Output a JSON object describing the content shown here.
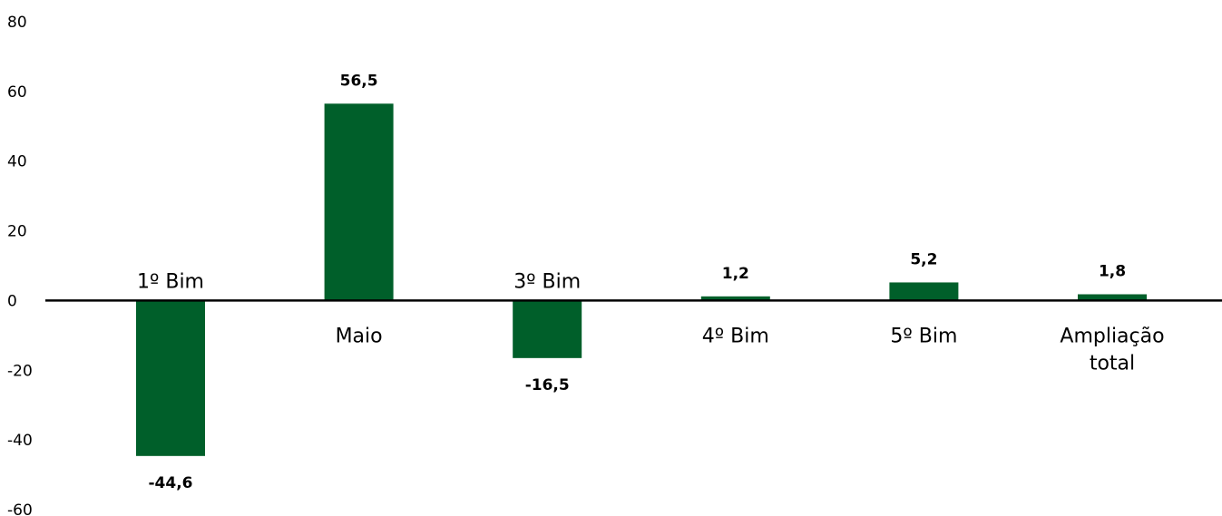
{
  "chart_data": {
    "type": "bar",
    "categories": [
      [
        "1º Bim"
      ],
      [
        "Maio"
      ],
      [
        "3º Bim"
      ],
      [
        "4º Bim"
      ],
      [
        "5º Bim"
      ],
      [
        "Ampliação",
        "total"
      ]
    ],
    "values": [
      -44.6,
      56.5,
      -16.5,
      1.2,
      5.2,
      1.8
    ],
    "value_labels": [
      "-44,6",
      "56,5",
      "-16,5",
      "1,2",
      "5,2",
      "1,8"
    ],
    "title": "",
    "xlabel": "",
    "ylabel": "",
    "ylim": [
      -60,
      80
    ],
    "yticks": [
      80,
      60,
      40,
      20,
      0,
      -20,
      -40,
      -60
    ],
    "grid": false,
    "legend": "none",
    "bar_color": "#005f2a",
    "axis_color": "#000000"
  }
}
